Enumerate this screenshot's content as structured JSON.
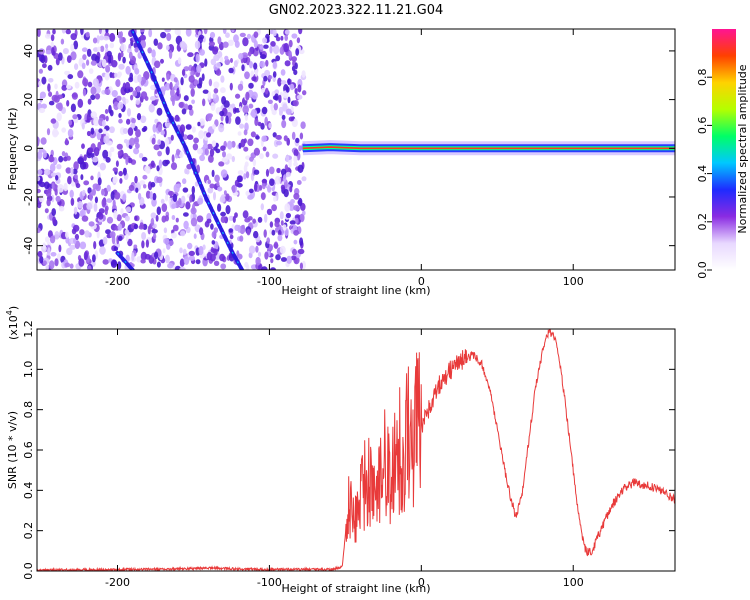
{
  "figure": {
    "title": "GN02.2023.322.11.21.G04"
  },
  "chart_data": [
    {
      "type": "heatmap",
      "title": "GN02.2023.322.11.21.G04",
      "xlabel": "Height of straight line (km)",
      "ylabel": "Frequency (Hz)",
      "xlim": [
        -253,
        167
      ],
      "ylim": [
        -50,
        49
      ],
      "x_ticks": [
        -200,
        -100,
        0,
        100
      ],
      "y_ticks": [
        -40,
        -20,
        0,
        20,
        40
      ],
      "noise_region_x": [
        -253,
        -77
      ],
      "tracks": [
        {
          "name": "",
          "points": [
            [
              -190,
              48
            ],
            [
              -178,
              32
            ],
            [
              -167,
              15
            ],
            [
              -155,
              0
            ],
            [
              -142,
              -20
            ],
            [
              -125,
              -42
            ],
            [
              -118,
              -50
            ]
          ]
        },
        {
          "name": "",
          "points": [
            [
              -200,
              -43
            ],
            [
              -190,
              -50
            ]
          ]
        },
        {
          "name": "",
          "points": [
            [
              -78,
              0
            ],
            [
              -60,
              0.5
            ],
            [
              -40,
              0
            ],
            [
              -22,
              0
            ],
            [
              0,
              0
            ],
            [
              50,
              0
            ],
            [
              100,
              0
            ],
            [
              167,
              0
            ]
          ]
        }
      ],
      "colorbar": {
        "label": "Normalized spectral amplitude",
        "range": [
          0,
          1
        ],
        "ticks": [
          "0.0",
          "0.2",
          "0.4",
          "0.6",
          "0.8"
        ],
        "colors": [
          "#ffffff",
          "#e8d8ff",
          "#8a2be2",
          "#1e2bff",
          "#00c8ff",
          "#00ff66",
          "#b4ff00",
          "#ffd200",
          "#ff4000",
          "#ff1493"
        ]
      }
    },
    {
      "type": "line",
      "xlabel": "Height of straight line (km)",
      "ylabel": "SNR (10 * v/v)",
      "yscale_label": "(x10",
      "yscale_exp": "4",
      "yscale_close": ")",
      "xlim": [
        -253,
        167
      ],
      "ylim": [
        0,
        12000
      ],
      "x_ticks": [
        -200,
        -100,
        0,
        100
      ],
      "y_ticks": [
        "0.0",
        "0.2",
        "0.4",
        "0.6",
        "0.8",
        "1.0",
        "1.2"
      ],
      "color": "#e83a3a",
      "x": [
        -253,
        -230,
        -200,
        -180,
        -160,
        -140,
        -120,
        -100,
        -80,
        -60,
        -52,
        -48,
        -44,
        -40,
        -35,
        -30,
        -25,
        -20,
        -15,
        -10,
        -5,
        0,
        5,
        10,
        15,
        20,
        25,
        30,
        35,
        40,
        45,
        50,
        55,
        58,
        62,
        66,
        70,
        75,
        80,
        84,
        88,
        92,
        96,
        100,
        104,
        108,
        112,
        118,
        125,
        132,
        140,
        150,
        160,
        167
      ],
      "y": [
        50,
        60,
        70,
        80,
        110,
        150,
        100,
        80,
        80,
        80,
        200,
        3500,
        2200,
        3600,
        5000,
        3000,
        5800,
        4200,
        6000,
        6500,
        7000,
        7200,
        8000,
        9000,
        9600,
        10000,
        10400,
        10600,
        10700,
        10200,
        9000,
        7000,
        5000,
        3900,
        2700,
        3600,
        6000,
        9000,
        11000,
        11900,
        11600,
        10000,
        7500,
        5000,
        2500,
        1000,
        900,
        2000,
        3200,
        4000,
        4400,
        4200,
        3900,
        3500
      ]
    }
  ]
}
